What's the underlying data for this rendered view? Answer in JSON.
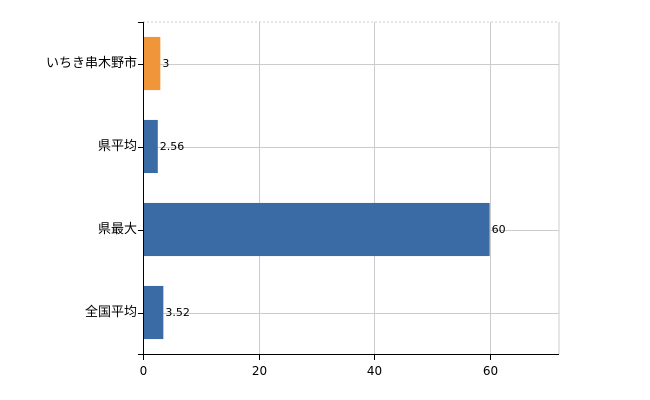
{
  "chart_data": {
    "type": "bar",
    "orientation": "horizontal",
    "categories": [
      "いちき串木野市",
      "県平均",
      "県最大",
      "全国平均"
    ],
    "values": [
      3,
      2.56,
      60,
      3.52
    ],
    "value_labels": [
      "3",
      "2.56",
      "60",
      "3.52"
    ],
    "bar_colors": [
      "#f0953a",
      "#3a6ba5",
      "#3a6ba5",
      "#3a6ba5"
    ],
    "xlim": [
      0,
      72
    ],
    "x_ticks": [
      0,
      20,
      40,
      60
    ],
    "x_tick_labels": [
      "0",
      "20",
      "40",
      "60"
    ],
    "grid": true,
    "legend": "none",
    "title": "",
    "xlabel": "",
    "ylabel": ""
  }
}
